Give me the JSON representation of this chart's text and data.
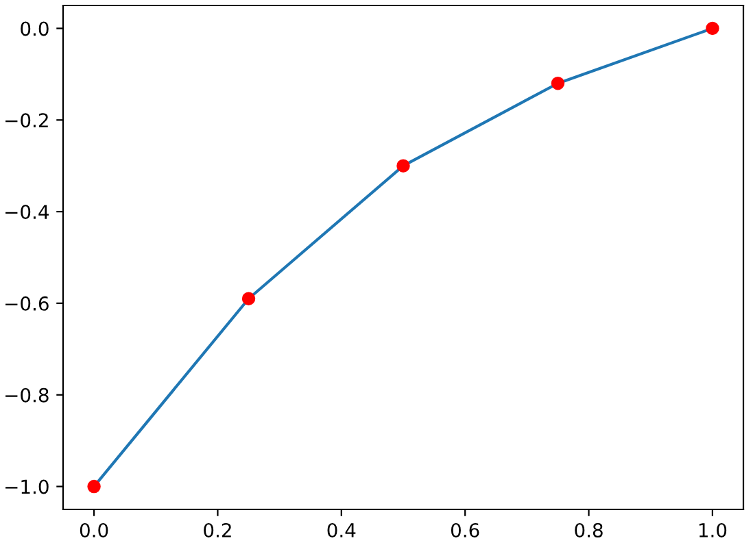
{
  "chart_data": {
    "type": "line",
    "x": [
      0,
      0.25,
      0.5,
      0.75,
      1
    ],
    "series": [
      {
        "color": "#1f77b4",
        "marker": "none",
        "values": [
          -1,
          -0.59,
          -0.3,
          -0.12,
          0
        ]
      },
      {
        "type": "scatter",
        "color": "#ff0000",
        "marker": "circle",
        "values": [
          -1,
          -0.59,
          -0.3,
          -0.12,
          0
        ]
      }
    ],
    "xlim": [
      -0.05,
      1.05
    ],
    "ylim": [
      -1.05,
      0.05
    ],
    "xticks": [
      {
        "value": 0,
        "label": "0.0"
      },
      {
        "value": 0.2,
        "label": "0.2"
      },
      {
        "value": 0.4,
        "label": "0.4"
      },
      {
        "value": 0.6,
        "label": "0.6"
      },
      {
        "value": 0.8,
        "label": "0.8"
      },
      {
        "value": 1,
        "label": "1.0"
      }
    ],
    "yticks": [
      {
        "value": -1,
        "label": "−1.0"
      },
      {
        "value": -0.8,
        "label": "−0.8"
      },
      {
        "value": -0.6,
        "label": "−0.6"
      },
      {
        "value": -0.4,
        "label": "−0.4"
      },
      {
        "value": -0.2,
        "label": "−0.2"
      },
      {
        "value": 0,
        "label": "0.0"
      }
    ],
    "grid": false,
    "legend": false
  }
}
